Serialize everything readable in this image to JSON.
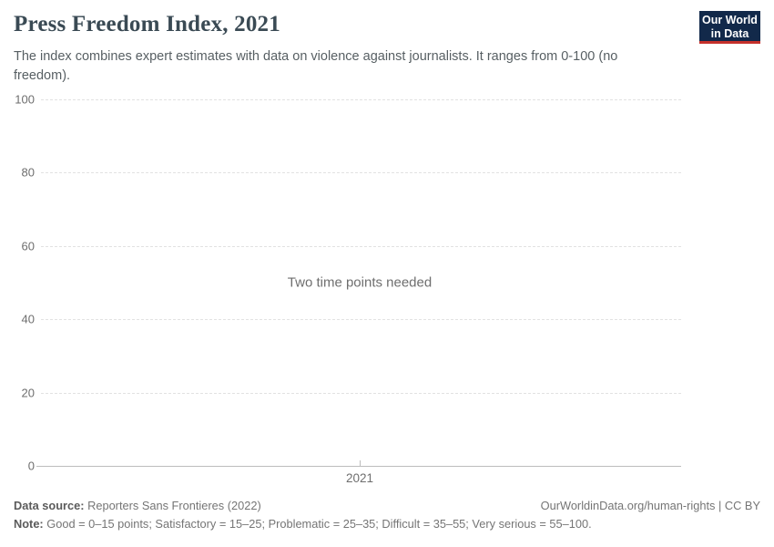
{
  "header": {
    "title": "Press Freedom Index, 2021",
    "subtitle": "The index combines expert estimates with data on violence against journalists. It ranges from 0-100 (no freedom).",
    "logo": {
      "line1": "Our World",
      "line2": "in Data",
      "bg_color": "#12294a",
      "accent_color": "#c5302b"
    }
  },
  "chart_data": {
    "type": "line",
    "title": "Press Freedom Index, 2021",
    "x": [
      "2021"
    ],
    "series": [],
    "empty_message": "Two time points needed",
    "yticks": [
      0,
      20,
      40,
      60,
      80,
      100
    ],
    "ylim": [
      0,
      100
    ],
    "xlabel": "",
    "ylabel": "",
    "grid": true,
    "legend": "none"
  },
  "footer": {
    "datasource_label": "Data source:",
    "datasource_value": "Reporters Sans Frontieres (2022)",
    "note_label": "Note:",
    "note_value": "Good = 0–15 points; Satisfactory = 15–25; Problematic = 25–35; Difficult = 35–55; Very serious = 55–100.",
    "attribution_url": "OurWorldinData.org/human-rights",
    "attribution_suffix": " | CC BY"
  }
}
